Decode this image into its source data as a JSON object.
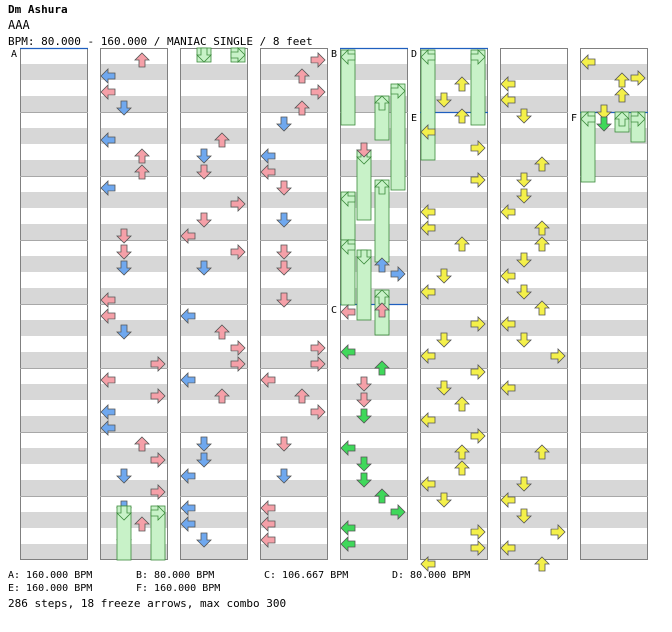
{
  "song": {
    "title": "Dm Ashura",
    "artist": "AAA",
    "bpm_info": "BPM: 80.000 - 160.000 / MANIAC SINGLE / 8 feet"
  },
  "section_markers": [
    "A",
    "B",
    "C",
    "D",
    "E",
    "F"
  ],
  "bpm_legend": {
    "a": "A: 160.000 BPM",
    "b": "B: 80.000 BPM",
    "c": "C: 106.667 BPM",
    "d": "D: 80.000 BPM",
    "e": "E: 160.000 BPM",
    "f": "F: 160.000 BPM"
  },
  "stats": "286 steps, 18 freeze arrows, max combo 300",
  "colors": {
    "stripe": "#d7d7d7",
    "border": "#808080",
    "marker_line": "#1f5fbf",
    "arrow_red": "#f5a0a8",
    "arrow_blue": "#6fa8ef",
    "arrow_yellow": "#f4f04a",
    "arrow_green": "#3fd85a",
    "freeze": "#c8f2c8",
    "freeze_border": "#3b8a3b"
  }
}
